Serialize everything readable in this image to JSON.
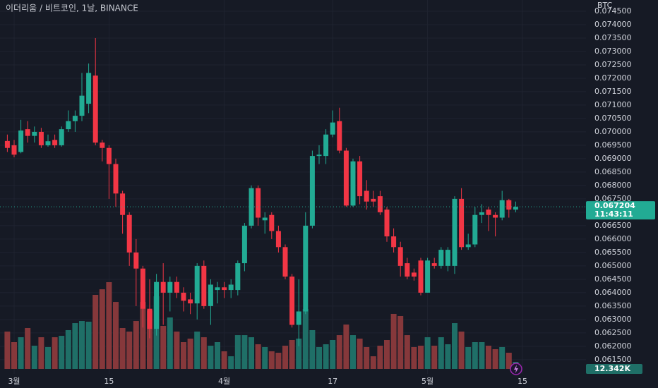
{
  "chart_data": {
    "type": "candlestick",
    "title": "이더리움 / 비트코인, 1날, BINANCE",
    "unit": "BTC",
    "countdown": "11:43:11",
    "categories": [
      null,
      "3월",
      null,
      null,
      null,
      null,
      null,
      null,
      null,
      null,
      null,
      null,
      null,
      null,
      null,
      "15",
      null,
      null,
      null,
      null,
      null,
      null,
      null,
      null,
      null,
      null,
      null,
      null,
      null,
      null,
      null,
      null,
      "4월",
      null,
      null,
      null,
      null,
      null,
      null,
      null,
      null,
      null,
      null,
      null,
      null,
      null,
      null,
      null,
      "17",
      null,
      null,
      null,
      null,
      null,
      null,
      null,
      null,
      null,
      null,
      null,
      null,
      null,
      "5월",
      null,
      null,
      null,
      null,
      null,
      null,
      null,
      null,
      null,
      null,
      null,
      null,
      null,
      "15"
    ],
    "open": [
      0.06966,
      0.0695,
      0.06925,
      0.0701,
      0.06985,
      0.07,
      0.0695,
      0.0697,
      0.0695,
      0.0701,
      0.0704,
      0.0706,
      0.07105,
      0.0721,
      0.0696,
      0.0694,
      0.0688,
      0.0677,
      0.0669,
      0.0655,
      0.0649,
      0.0634,
      0.06265,
      0.0644,
      0.064,
      0.0644,
      0.064,
      0.06375,
      0.0636,
      0.065,
      0.0635,
      0.0641,
      0.0642,
      0.0641,
      0.0641,
      0.0651,
      0.0665,
      0.0679,
      0.0667,
      0.0669,
      0.0663,
      0.0657,
      0.0646,
      0.0628,
      0.0633,
      0.0665,
      0.0691,
      0.0691,
      0.0699,
      0.0704,
      0.0693,
      0.06725,
      0.0689,
      0.0678,
      0.0675,
      0.0676,
      0.0671,
      0.0661,
      0.0657,
      0.0651,
      0.06475,
      0.0652,
      0.064,
      0.0651,
      0.065,
      0.065,
      0.065,
      0.0675,
      0.0657,
      0.0658,
      0.0669,
      0.0671,
      0.0669,
      0.0668,
      0.06745,
      0.0671,
      null
    ],
    "high": [
      0.0699,
      0.0697,
      0.07045,
      0.0704,
      0.0702,
      0.07015,
      0.0699,
      0.0699,
      0.0702,
      0.0708,
      0.0708,
      0.0722,
      0.07255,
      0.0735,
      0.0697,
      0.0695,
      0.069,
      0.0678,
      0.067,
      0.066,
      0.065,
      0.0645,
      0.0647,
      0.0651,
      0.0646,
      0.0646,
      0.0642,
      0.064,
      0.0651,
      0.0652,
      0.0645,
      0.0644,
      0.0644,
      0.0645,
      0.0652,
      0.0666,
      0.068,
      0.068,
      0.067,
      0.067,
      0.0665,
      0.0658,
      0.0647,
      0.0645,
      0.067,
      0.0693,
      0.0695,
      0.0701,
      0.0708,
      0.0709,
      0.0694,
      0.069,
      0.0691,
      0.0682,
      0.0678,
      0.0678,
      0.0672,
      0.0664,
      0.0659,
      0.0653,
      0.0649,
      0.0653,
      0.0653,
      0.0653,
      0.0657,
      0.0657,
      0.0676,
      0.0679,
      0.0662,
      0.0672,
      0.0673,
      0.0672,
      0.067,
      0.0678,
      0.0675,
      0.0674,
      null
    ],
    "low": [
      0.06925,
      0.06905,
      0.0692,
      0.0696,
      0.0696,
      0.0694,
      0.06945,
      0.0694,
      0.06945,
      0.07,
      0.07,
      0.0704,
      0.0707,
      0.0695,
      0.0689,
      0.0675,
      0.0672,
      0.0662,
      0.065,
      0.0635,
      0.0627,
      0.0623,
      0.0624,
      0.0628,
      0.0633,
      0.0638,
      0.0633,
      0.0632,
      0.063,
      0.0634,
      0.0628,
      0.0636,
      0.0638,
      0.0638,
      0.0639,
      0.0648,
      0.0664,
      0.0665,
      0.0662,
      0.066,
      0.0655,
      0.0645,
      0.0627,
      0.062,
      0.0632,
      0.0664,
      0.0688,
      0.0688,
      0.0698,
      0.0692,
      0.0672,
      0.0672,
      0.0673,
      0.0671,
      0.0672,
      0.0669,
      0.0659,
      0.0655,
      0.0646,
      0.0645,
      0.06445,
      0.0639,
      0.064,
      0.0649,
      0.0649,
      0.0648,
      0.0647,
      0.0656,
      0.0656,
      0.0657,
      0.0666,
      0.0663,
      0.0661,
      0.0667,
      0.0668,
      0.067,
      null
    ],
    "close": [
      0.0694,
      0.06915,
      0.07005,
      0.06985,
      0.07,
      0.0695,
      0.06965,
      0.0695,
      0.0701,
      0.0704,
      0.0706,
      0.07135,
      0.0722,
      0.0696,
      0.0694,
      0.0688,
      0.0677,
      0.0669,
      0.0655,
      0.0649,
      0.0634,
      0.06265,
      0.0644,
      0.064,
      0.0644,
      0.064,
      0.0637,
      0.0636,
      0.065,
      0.0635,
      0.0643,
      0.0642,
      0.0641,
      0.0643,
      0.0651,
      0.0665,
      0.0679,
      0.0668,
      0.0668,
      0.0663,
      0.0657,
      0.0646,
      0.0628,
      0.0633,
      0.0665,
      0.0691,
      0.06915,
      0.0699,
      0.07035,
      0.0693,
      0.06725,
      0.0689,
      0.0676,
      0.0674,
      0.0674,
      0.067,
      0.0661,
      0.0657,
      0.065,
      0.0646,
      0.0646,
      0.064,
      0.0652,
      0.065,
      0.0656,
      0.0656,
      0.0675,
      0.0657,
      0.0658,
      0.0669,
      0.067,
      0.0669,
      0.0668,
      0.06745,
      0.0671,
      0.067204,
      null
    ],
    "volume": {
      "values": [
        65400,
        46900,
        55500,
        71600,
        40700,
        55500,
        38300,
        55500,
        58000,
        67900,
        80200,
        83900,
        82700,
        129600,
        139400,
        151800,
        117200,
        71600,
        65400,
        83900,
        117200,
        102400,
        127100,
        75300,
        90100,
        65400,
        46900,
        53100,
        65400,
        55500,
        40700,
        46900,
        30900,
        22200,
        59200,
        59200,
        55500,
        43200,
        38300,
        30900,
        28400,
        40700,
        50600,
        53100,
        104900,
        67900,
        38300,
        43200,
        50600,
        59200,
        77700,
        59200,
        53100,
        38300,
        22200,
        40700,
        50600,
        96300,
        92600,
        59200,
        38300,
        40700,
        55500,
        40700,
        55500,
        43200,
        80200,
        65400,
        38300,
        46900,
        46900,
        40700,
        34600,
        38300,
        28400,
        12342,
        null
      ],
      "value_labels": [
        null,
        null,
        null,
        null,
        null,
        null,
        null,
        null,
        null,
        null,
        null,
        null,
        null,
        null,
        null,
        null,
        null,
        null,
        null,
        null,
        null,
        null,
        null,
        null,
        null,
        null,
        null,
        null,
        null,
        null,
        null,
        null,
        null,
        null,
        null,
        null,
        null,
        null,
        null,
        null,
        null,
        null,
        null,
        null,
        null,
        null,
        null,
        null,
        null,
        null,
        null,
        null,
        null,
        null,
        null,
        null,
        null,
        null,
        null,
        null,
        null,
        null,
        null,
        null,
        null,
        null,
        null,
        null,
        null,
        null,
        null,
        null,
        null,
        null,
        null,
        "12.342K",
        null
      ]
    },
    "ylim": [
      0.06097,
      0.07492
    ],
    "yticks": [
      {
        "value": 0.0615,
        "label": "0.061500"
      },
      {
        "value": 0.062,
        "label": "0.062000"
      },
      {
        "value": 0.0625,
        "label": "0.062500"
      },
      {
        "value": 0.063,
        "label": "0.063000"
      },
      {
        "value": 0.0635,
        "label": "0.063500"
      },
      {
        "value": 0.064,
        "label": "0.064000"
      },
      {
        "value": 0.0645,
        "label": "0.064500"
      },
      {
        "value": 0.065,
        "label": "0.065000"
      },
      {
        "value": 0.0655,
        "label": "0.065500"
      },
      {
        "value": 0.066,
        "label": "0.066000"
      },
      {
        "value": 0.0665,
        "label": "0.066500"
      },
      {
        "value": 0.067,
        "label": "0.067000"
      },
      {
        "value": 0.0675,
        "label": "0.067500"
      },
      {
        "value": 0.068,
        "label": "0.068000"
      },
      {
        "value": 0.0685,
        "label": "0.068500"
      },
      {
        "value": 0.069,
        "label": "0.069000"
      },
      {
        "value": 0.0695,
        "label": "0.069500"
      },
      {
        "value": 0.07,
        "label": "0.070000"
      },
      {
        "value": 0.0705,
        "label": "0.070500"
      },
      {
        "value": 0.071,
        "label": "0.071000"
      },
      {
        "value": 0.0715,
        "label": "0.071500"
      },
      {
        "value": 0.072,
        "label": "0.072000"
      },
      {
        "value": 0.0725,
        "label": "0.072500"
      },
      {
        "value": 0.073,
        "label": "0.073000"
      },
      {
        "value": 0.0735,
        "label": "0.073500"
      },
      {
        "value": 0.074,
        "label": "0.074000"
      },
      {
        "value": 0.0745,
        "label": "0.074500"
      }
    ],
    "grid": true,
    "colors": {
      "up": "#22ab94",
      "down": "#f23645",
      "volume_up": "#1f6f67",
      "volume_down": "#86383b"
    }
  }
}
